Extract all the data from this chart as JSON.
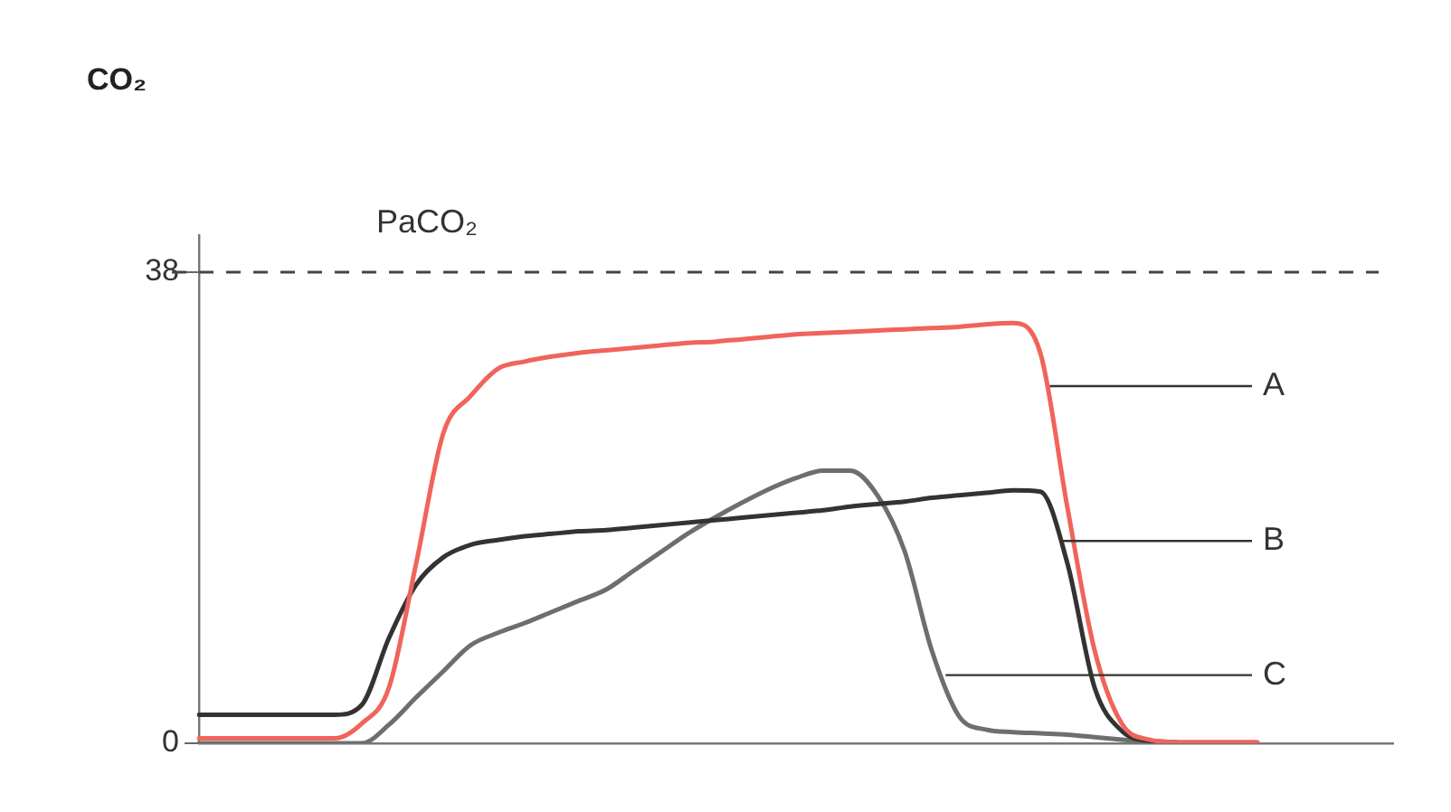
{
  "chart_data": {
    "type": "line",
    "ylabel": "CO₂",
    "categories": [
      null,
      null,
      null,
      null,
      null,
      null,
      null,
      null,
      null,
      null,
      null,
      null,
      null,
      null,
      null,
      null,
      null,
      null,
      null,
      null,
      null,
      null,
      null,
      null,
      null,
      null,
      null,
      null,
      null,
      null,
      null,
      null,
      null,
      null,
      null,
      null,
      null,
      null,
      null,
      null,
      null,
      null,
      null,
      null,
      null
    ],
    "series": [
      {
        "name": "A",
        "color": "#f0645a",
        "values": [
          0.4,
          0.4,
          0.4,
          0.4,
          0.4,
          0.4,
          1.6,
          4.5,
          14.5,
          25,
          28,
          30.2,
          30.8,
          31.2,
          31.5,
          31.7,
          31.9,
          32.1,
          32.3,
          32.4,
          32.6,
          32.8,
          33,
          33.1,
          33.2,
          33.3,
          33.4,
          33.5,
          33.6,
          33.8,
          33.9,
          31.5,
          19,
          7.5,
          1.6,
          0.3,
          0.1,
          0.1,
          0.1,
          0.1,
          null,
          null,
          null,
          null,
          null
        ]
      },
      {
        "name": "B",
        "color": "#333333",
        "values": [
          2.3,
          2.3,
          2.3,
          2.3,
          2.3,
          2.3,
          3.1,
          8.5,
          12.8,
          15,
          16,
          16.4,
          16.7,
          16.9,
          17.1,
          17.2,
          17.4,
          17.6,
          17.8,
          18,
          18.2,
          18.4,
          18.6,
          18.8,
          19.1,
          19.3,
          19.5,
          19.8,
          20,
          20.2,
          20.4,
          20.3,
          14.5,
          4.5,
          1,
          0.2,
          0.1,
          null,
          null,
          null,
          null,
          null,
          null,
          null,
          null
        ]
      },
      {
        "name": "C",
        "color": "#6e6e6e",
        "values": [
          0,
          0,
          0,
          0,
          0,
          0,
          0,
          1.5,
          3.7,
          5.8,
          7.9,
          8.9,
          9.7,
          10.6,
          11.5,
          12.4,
          13.9,
          15.4,
          16.9,
          18.2,
          19.4,
          20.5,
          21.4,
          22,
          22,
          20,
          15.5,
          7.5,
          2.2,
          1.1,
          0.9,
          0.8,
          0.7,
          0.5,
          0.3,
          0.1,
          null,
          null,
          null,
          null,
          null,
          null,
          null,
          null,
          null
        ]
      }
    ],
    "ylim": [
      0,
      41
    ],
    "yticks": [
      0,
      38
    ],
    "ref_lines": [
      {
        "axis": "y",
        "value": 38,
        "label": "PaCO₂",
        "color": "#444444",
        "line_style": "dashed"
      }
    ],
    "grid": false,
    "legend": false,
    "tick_labels": "y",
    "marker": "none"
  }
}
